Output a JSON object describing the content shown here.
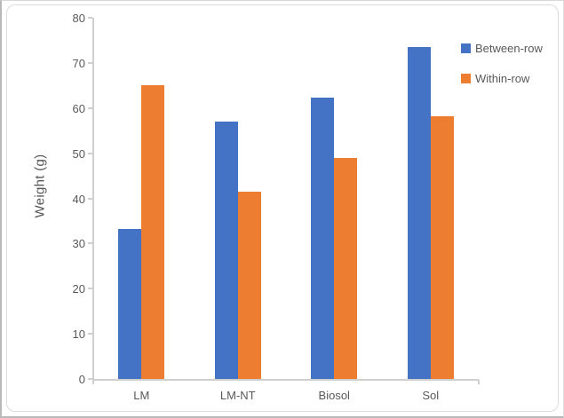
{
  "chart_data": {
    "type": "bar",
    "title": "",
    "ylabel": "Weight (g)",
    "xlabel": "",
    "categories": [
      "LM",
      "LM-NT",
      "Biosol",
      "Sol"
    ],
    "series": [
      {
        "name": "Between-row",
        "color": "#4472C4",
        "values": [
          33.3,
          57.1,
          62.4,
          73.5
        ]
      },
      {
        "name": "Within-row",
        "color": "#ED7D31",
        "values": [
          65.0,
          41.4,
          48.9,
          58.2
        ]
      }
    ],
    "ylim": [
      0,
      80
    ],
    "yticks": [
      0,
      10,
      20,
      30,
      40,
      50,
      60,
      70,
      80
    ],
    "grid": false,
    "legend_position": "top-right",
    "axis_color": "#cfcfcf",
    "tick_label_color": "#595959"
  }
}
